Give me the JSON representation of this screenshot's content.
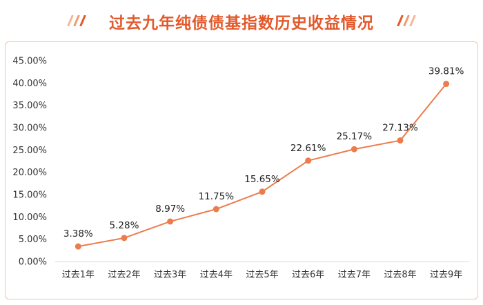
{
  "page": {
    "title": "过去九年纯债债基指数历史收益情况"
  },
  "colors": {
    "title": "#e3592b",
    "line": "#ec7c4c",
    "marker": "#ec7c4c",
    "frame": "#f4c4a8",
    "axis": "#d9d9d9"
  },
  "icons": {
    "left_decoration": "slash-stripes-icon",
    "right_decoration": "slash-stripes-icon"
  },
  "chart_data": {
    "type": "line",
    "title": "过去九年纯债债基指数历史收益情况",
    "xlabel": "",
    "ylabel": "",
    "categories": [
      "过去1年",
      "过去2年",
      "过去3年",
      "过去4年",
      "过去5年",
      "过去6年",
      "过去7年",
      "过去8年",
      "过去9年"
    ],
    "series": [
      {
        "values": [
          3.38,
          5.28,
          8.97,
          11.75,
          15.65,
          22.61,
          25.17,
          27.13,
          39.81
        ],
        "labels": [
          "3.38%",
          "5.28%",
          "8.97%",
          "11.75%",
          "15.65%",
          "22.61%",
          "25.17%",
          "27.13%",
          "39.81%"
        ]
      }
    ],
    "ylim": [
      0,
      45
    ],
    "yticks": [
      0,
      5,
      10,
      15,
      20,
      25,
      30,
      35,
      40,
      45
    ],
    "ytick_labels": [
      "0.00%",
      "5.00%",
      "10.00%",
      "15.00%",
      "20.00%",
      "25.00%",
      "30.00%",
      "35.00%",
      "40.00%",
      "45.00%"
    ],
    "grid": false,
    "legend": "none"
  }
}
